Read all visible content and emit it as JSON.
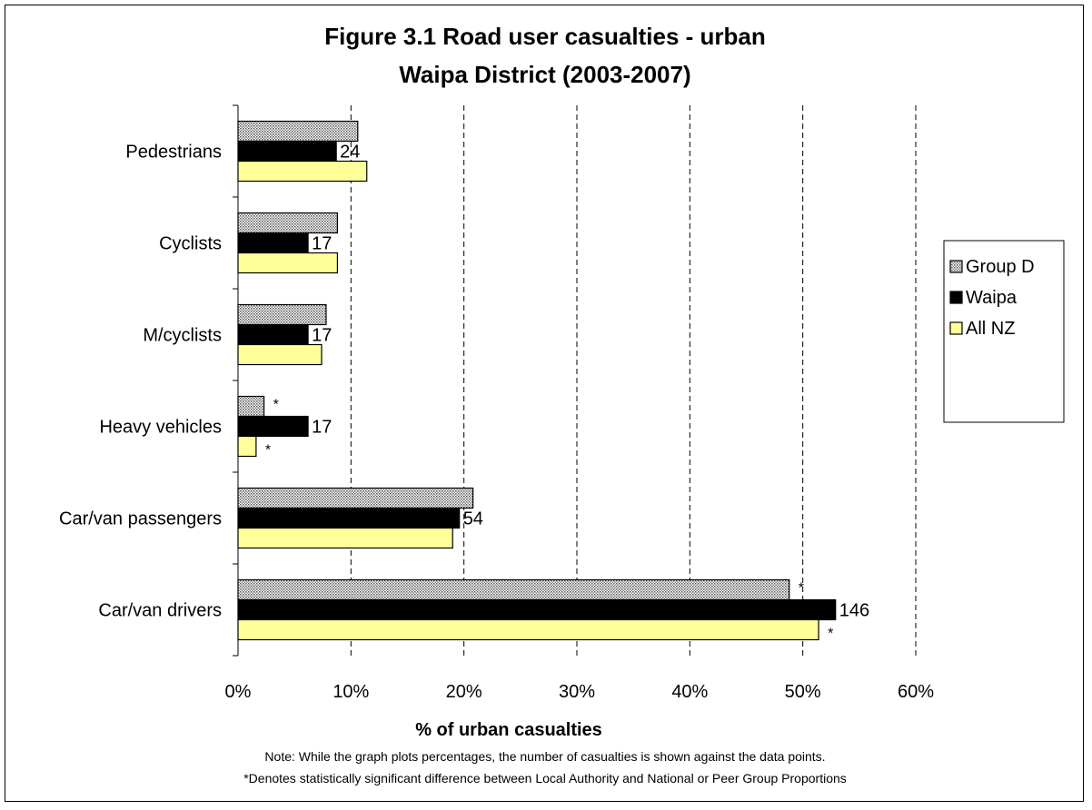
{
  "chart_data": {
    "type": "bar",
    "orientation": "horizontal",
    "title_line1": "Figure 3.1 Road user casualties - urban",
    "title_line2": "Waipa District  (2003-2007)",
    "xlabel": "% of urban casualties",
    "ylabel": "",
    "xlim": [
      0,
      60
    ],
    "x_ticks": [
      "0%",
      "10%",
      "20%",
      "30%",
      "40%",
      "50%",
      "60%"
    ],
    "grid": "vertical dashed",
    "legend_position": "right",
    "categories": [
      "Pedestrians",
      "Cyclists",
      "M/cyclists",
      "Heavy vehicles",
      "Car/van passengers",
      "Car/van drivers"
    ],
    "series": [
      {
        "name": "Group D",
        "values": [
          10.6,
          8.8,
          7.8,
          2.3,
          20.8,
          48.8
        ],
        "pattern": "dotted-gray"
      },
      {
        "name": "Waipa",
        "values": [
          8.7,
          6.2,
          6.2,
          6.2,
          19.6,
          52.9
        ],
        "pattern": "solid-black"
      },
      {
        "name": "All NZ",
        "values": [
          11.4,
          8.8,
          7.4,
          1.6,
          19.0,
          51.4
        ],
        "pattern": "light-yellow"
      }
    ],
    "data_labels": [
      "24",
      "17",
      "17",
      "17",
      "54",
      "146"
    ],
    "significance_marks": [
      {
        "category": "Heavy vehicles",
        "series": "Group D",
        "mark": "*"
      },
      {
        "category": "Heavy vehicles",
        "series": "All NZ",
        "mark": "*"
      },
      {
        "category": "Car/van drivers",
        "series": "Group D",
        "mark": "*"
      },
      {
        "category": "Car/van drivers",
        "series": "All NZ",
        "mark": "*"
      }
    ],
    "colors": {
      "group_d": "#e0e0e0",
      "waipa": "#000000",
      "all_nz": "#ffff99"
    }
  },
  "notes": {
    "line1": "Note: While the graph plots percentages, the number of casualties is shown against the data points.",
    "line2": "*Denotes statistically significant difference between Local Authority and National or Peer Group Proportions"
  }
}
